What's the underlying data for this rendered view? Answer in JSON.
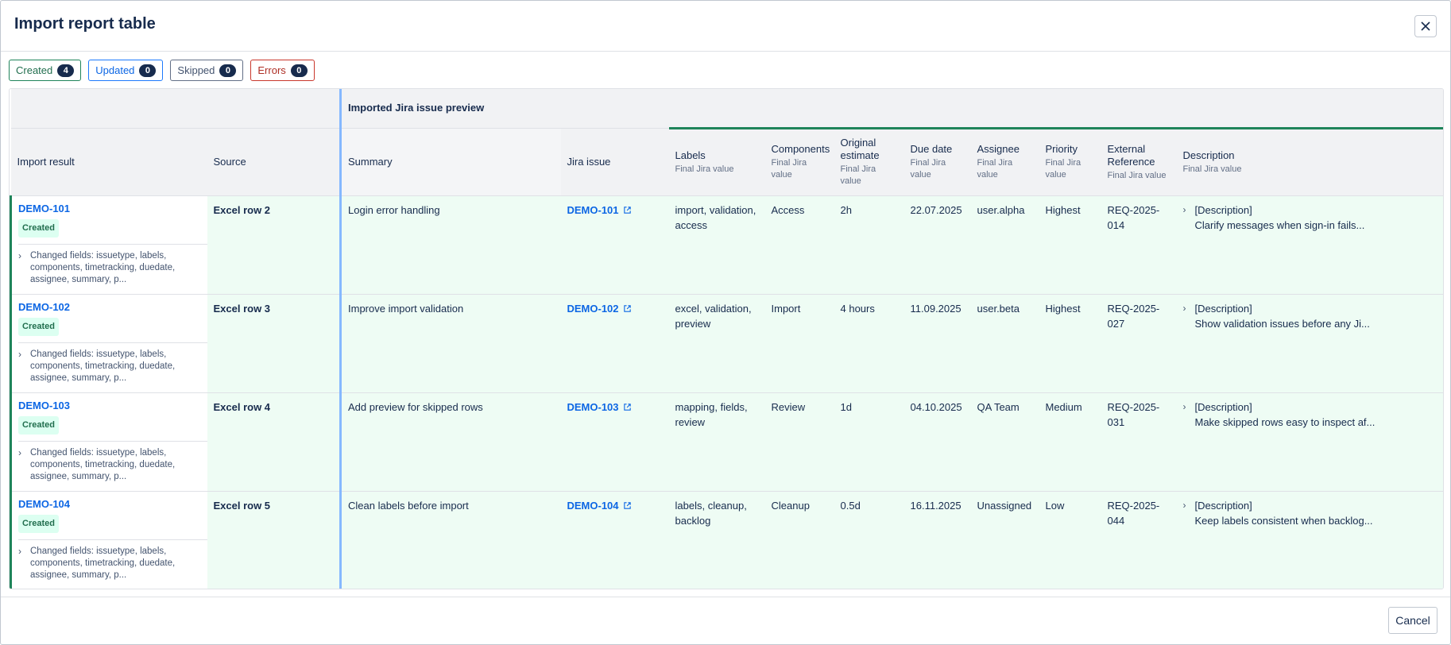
{
  "modal": {
    "title": "Import report table"
  },
  "filters": [
    {
      "label": "Created",
      "count": "4",
      "color": "#1f845a"
    },
    {
      "label": "Updated",
      "count": "0",
      "color": "#1d7afc"
    },
    {
      "label": "Skipped",
      "count": "0",
      "color": "#626f86"
    },
    {
      "label": "Errors",
      "count": "0",
      "color": "#c9372c"
    }
  ],
  "table": {
    "group_header": "Imported Jira issue preview",
    "columns": {
      "import_result": "Import result",
      "source": "Source",
      "summary": "Summary",
      "jira_issue": "Jira issue",
      "labels": "Labels",
      "components": "Components",
      "original_estimate": "Original estimate",
      "due_date": "Due date",
      "assignee": "Assignee",
      "priority": "Priority",
      "external_reference": "External Reference",
      "description": "Description"
    },
    "final_sub": "Final Jira value",
    "rows": [
      {
        "key": "DEMO-101",
        "status": "Created",
        "changed": "Changed fields: issuetype, labels, components, timetracking, duedate, assignee, summary, p...",
        "source": "Excel row 2",
        "summary": "Login error handling",
        "jira_issue": "DEMO-101",
        "labels": "import, validation, access",
        "components": "Access",
        "estimate": "2h",
        "due": "22.07.2025",
        "assignee": "user.alpha",
        "priority": "Highest",
        "ext_ref": "REQ-2025-014",
        "desc_title": "[Description]",
        "desc_text": "Clarify messages when sign-in fails..."
      },
      {
        "key": "DEMO-102",
        "status": "Created",
        "changed": "Changed fields: issuetype, labels, components, timetracking, duedate, assignee, summary, p...",
        "source": "Excel row 3",
        "summary": "Improve import validation",
        "jira_issue": "DEMO-102",
        "labels": "excel, validation, preview",
        "components": "Import",
        "estimate": "4 hours",
        "due": "11.09.2025",
        "assignee": "user.beta",
        "priority": "Highest",
        "ext_ref": "REQ-2025-027",
        "desc_title": "[Description]",
        "desc_text": "Show validation issues before any Ji..."
      },
      {
        "key": "DEMO-103",
        "status": "Created",
        "changed": "Changed fields: issuetype, labels, components, timetracking, duedate, assignee, summary, p...",
        "source": "Excel row 4",
        "summary": "Add preview for skipped rows",
        "jira_issue": "DEMO-103",
        "labels": "mapping, fields, review",
        "components": "Review",
        "estimate": "1d",
        "due": "04.10.2025",
        "assignee": "QA Team",
        "priority": "Medium",
        "ext_ref": "REQ-2025-031",
        "desc_title": "[Description]",
        "desc_text": "Make skipped rows easy to inspect af..."
      },
      {
        "key": "DEMO-104",
        "status": "Created",
        "changed": "Changed fields: issuetype, labels, components, timetracking, duedate, assignee, summary, p...",
        "source": "Excel row 5",
        "summary": "Clean labels before import",
        "jira_issue": "DEMO-104",
        "labels": "labels, cleanup, backlog",
        "components": "Cleanup",
        "estimate": "0.5d",
        "due": "16.11.2025",
        "assignee": "Unassigned",
        "priority": "Low",
        "ext_ref": "REQ-2025-044",
        "desc_title": "[Description]",
        "desc_text": "Keep labels consistent when backlog..."
      }
    ]
  },
  "footer": {
    "cancel_label": "Cancel"
  },
  "icons": {
    "close": "close-icon",
    "expand": "chevron-right-icon",
    "external": "external-link-icon"
  }
}
